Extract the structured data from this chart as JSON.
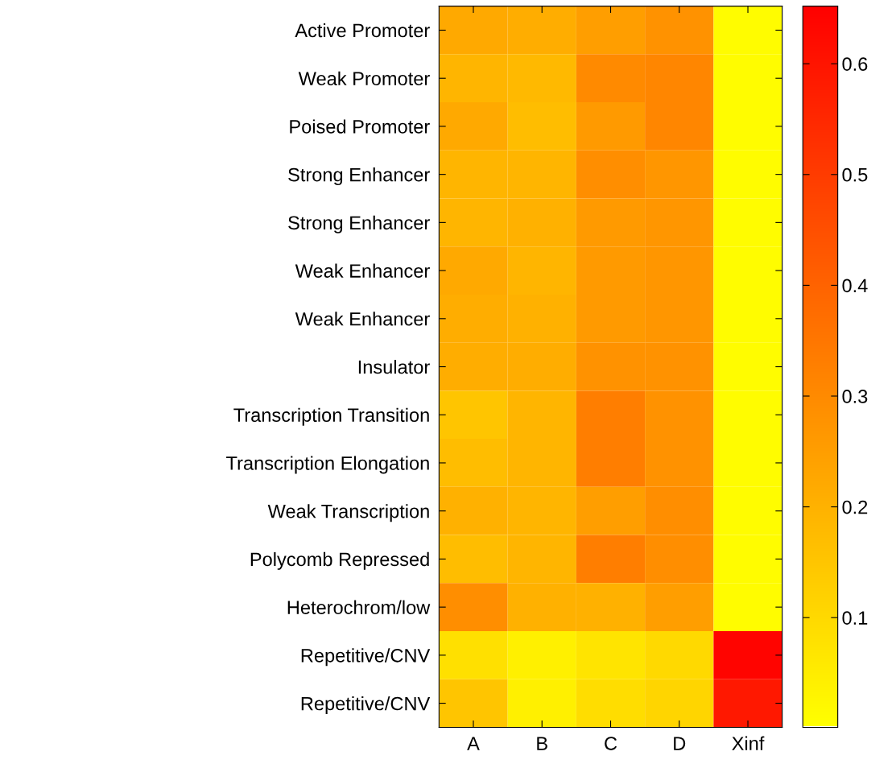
{
  "chart_data": {
    "type": "heatmap",
    "categories": [
      "A",
      "B",
      "C",
      "D",
      "Xinf"
    ],
    "y_categories": [
      "Active Promoter",
      "Weak Promoter",
      "Poised Promoter",
      "Strong Enhancer",
      "Strong Enhancer",
      "Weak Enhancer",
      "Weak Enhancer",
      "Insulator",
      "Transcription Transition",
      "Transcription Elongation",
      "Weak Transcription",
      "Polycomb Repressed",
      "Heterochrom/low",
      "Repetitive/CNV",
      "Repetitive/CNV"
    ],
    "cells": [
      [
        0.22,
        0.21,
        0.25,
        0.28,
        0.01
      ],
      [
        0.19,
        0.18,
        0.3,
        0.31,
        0.01
      ],
      [
        0.22,
        0.17,
        0.26,
        0.31,
        0.01
      ],
      [
        0.19,
        0.19,
        0.29,
        0.27,
        0.01
      ],
      [
        0.19,
        0.2,
        0.26,
        0.27,
        0.01
      ],
      [
        0.22,
        0.19,
        0.26,
        0.27,
        0.01
      ],
      [
        0.21,
        0.2,
        0.26,
        0.27,
        0.01
      ],
      [
        0.21,
        0.21,
        0.28,
        0.28,
        0.01
      ],
      [
        0.15,
        0.19,
        0.33,
        0.28,
        0.01
      ],
      [
        0.17,
        0.19,
        0.33,
        0.28,
        0.01
      ],
      [
        0.2,
        0.19,
        0.25,
        0.29,
        0.01
      ],
      [
        0.17,
        0.19,
        0.33,
        0.29,
        0.01
      ],
      [
        0.29,
        0.2,
        0.2,
        0.25,
        0.01
      ],
      [
        0.08,
        0.04,
        0.07,
        0.1,
        0.64
      ],
      [
        0.15,
        0.04,
        0.09,
        0.11,
        0.59
      ]
    ],
    "clim": [
      0.001,
      0.652
    ],
    "cticks": [
      0.1,
      0.2,
      0.3,
      0.4,
      0.5,
      0.6
    ],
    "grid": false
  }
}
